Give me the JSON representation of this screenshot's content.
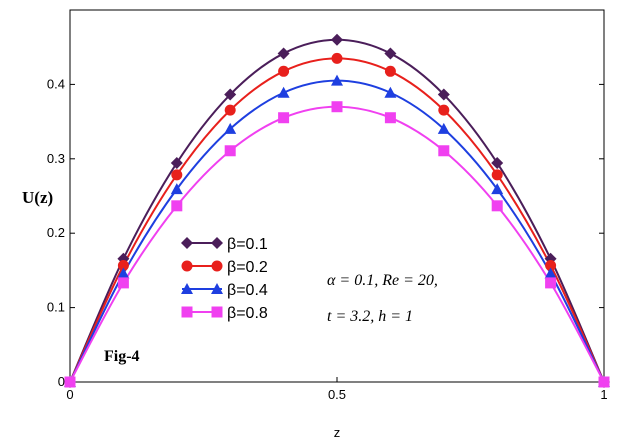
{
  "chart_data": {
    "type": "line",
    "x": [
      0,
      0.1,
      0.2,
      0.3,
      0.4,
      0.5,
      0.6,
      0.7,
      0.8,
      0.9,
      1
    ],
    "series": [
      {
        "name": "β=0.1",
        "color": "#4B1E5A",
        "marker": "diamond",
        "values": [
          0,
          0.1656,
          0.2944,
          0.3864,
          0.4416,
          0.46,
          0.4416,
          0.3864,
          0.2944,
          0.1656,
          0
        ]
      },
      {
        "name": "β=0.2",
        "color": "#E8201C",
        "marker": "circle",
        "values": [
          0,
          0.1566,
          0.2784,
          0.3654,
          0.4176,
          0.435,
          0.4176,
          0.3654,
          0.2784,
          0.1566,
          0
        ]
      },
      {
        "name": "β=0.4",
        "color": "#1E3FE0",
        "marker": "triangle",
        "values": [
          0,
          0.1458,
          0.2592,
          0.3402,
          0.3888,
          0.405,
          0.3888,
          0.3402,
          0.2592,
          0.1458,
          0
        ]
      },
      {
        "name": "β=0.8",
        "color": "#F040F0",
        "marker": "square",
        "values": [
          0,
          0.1332,
          0.2368,
          0.3108,
          0.3552,
          0.37,
          0.3552,
          0.3108,
          0.2368,
          0.1332,
          0
        ]
      }
    ],
    "xlabel": "z",
    "ylabel": "U(z)",
    "xlim": [
      0,
      1
    ],
    "ylim": [
      0,
      0.5
    ],
    "x_ticks": [
      "0",
      "0.5",
      "1"
    ],
    "y_ticks": [
      "0",
      "0.1",
      "0.2",
      "0.3",
      "0.4"
    ],
    "grid": false,
    "legend_position": "lower-left",
    "annotations": {
      "fig_label": "Fig-4",
      "params_line1": "α = 0.1, Re = 20,",
      "params_line2": "t = 3.2,   h = 1"
    }
  }
}
